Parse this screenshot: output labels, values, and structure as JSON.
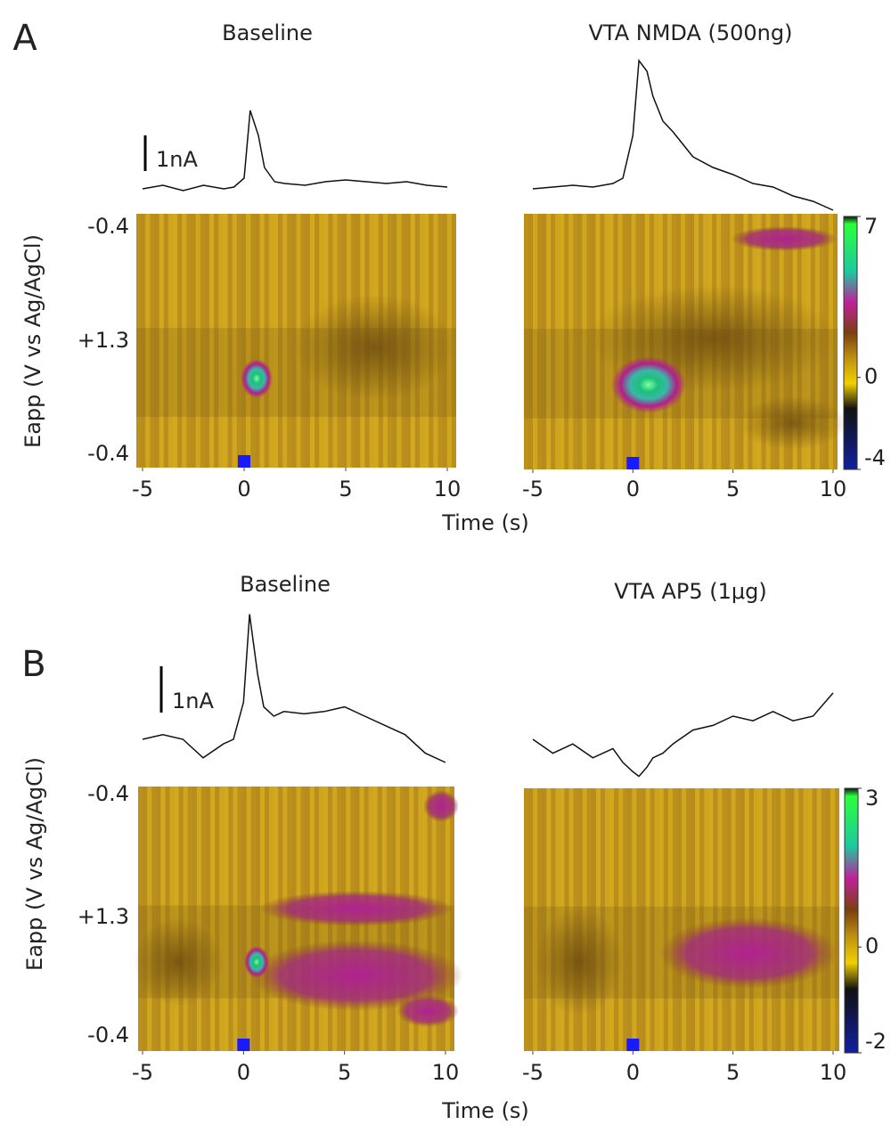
{
  "chart_data": [
    {
      "type": "colorplot",
      "letter": "A",
      "title": "Baseline",
      "ylabel": "Eapp (V vs Ag/AgCl)",
      "xlabel": "Time (s)",
      "eapp_ticks": [
        "-0.4",
        "+1.3",
        "-0.4"
      ],
      "scale_bar": {
        "value": 1,
        "label": "1nA"
      },
      "xlim": [
        -5,
        10
      ],
      "xticks": [
        -5,
        0,
        5,
        10
      ],
      "trace": {
        "x": [
          -5,
          -4,
          -3,
          -2,
          -1,
          -0.5,
          0,
          0.3,
          0.7,
          1,
          1.5,
          2,
          3,
          4,
          5,
          6,
          7,
          8,
          9,
          10
        ],
        "values": [
          0,
          0.1,
          -0.05,
          0.1,
          0,
          0.05,
          0.3,
          2.2,
          1.5,
          0.6,
          0.2,
          0.15,
          0.1,
          0.2,
          0.25,
          0.2,
          0.15,
          0.2,
          0.1,
          0.05
        ]
      }
    },
    {
      "type": "colorplot",
      "title": "VTA NMDA (500ng)",
      "xlim": [
        -5,
        10
      ],
      "xticks": [
        -5,
        0,
        5,
        10
      ],
      "colorbar": {
        "lim": [
          -4,
          7
        ],
        "ticks": [
          7,
          0,
          -4
        ]
      },
      "trace": {
        "x": [
          -5,
          -4,
          -3,
          -2,
          -1,
          -0.5,
          0,
          0.3,
          0.7,
          1,
          1.5,
          2,
          3,
          4,
          5,
          6,
          7,
          8,
          9,
          10
        ],
        "values": [
          0,
          0.05,
          0.1,
          0.05,
          0.15,
          0.3,
          1.5,
          3.6,
          3.3,
          2.6,
          1.9,
          1.6,
          0.9,
          0.6,
          0.4,
          0.15,
          0.05,
          -0.2,
          -0.35,
          -0.6
        ]
      }
    },
    {
      "type": "colorplot",
      "letter": "B",
      "title": "Baseline",
      "ylabel": "Eapp (V vs Ag/AgCl)",
      "xlabel": "Time (s)",
      "eapp_ticks": [
        "-0.4",
        "+1.3",
        "-0.4"
      ],
      "scale_bar": {
        "value": 1,
        "label": "1nA"
      },
      "xlim": [
        -5,
        10
      ],
      "xticks": [
        -5,
        0,
        5,
        10
      ],
      "trace": {
        "x": [
          -5,
          -4,
          -3,
          -2,
          -1,
          -0.5,
          0,
          0.3,
          0.7,
          1,
          1.5,
          2,
          3,
          4,
          5,
          6,
          7,
          8,
          9,
          10
        ],
        "values": [
          0,
          0.1,
          0,
          -0.4,
          -0.1,
          0,
          0.8,
          2.7,
          1.4,
          0.7,
          0.5,
          0.6,
          0.55,
          0.6,
          0.7,
          0.5,
          0.3,
          0.1,
          -0.3,
          -0.5
        ]
      }
    },
    {
      "type": "colorplot",
      "title": "VTA AP5 (1μg)",
      "xlim": [
        -5,
        10
      ],
      "xticks": [
        -5,
        0,
        5,
        10
      ],
      "colorbar": {
        "lim": [
          -2,
          3
        ],
        "ticks": [
          3,
          0,
          -2
        ]
      },
      "trace": {
        "x": [
          -5,
          -4,
          -3,
          -2,
          -1,
          -0.5,
          0,
          0.3,
          0.7,
          1,
          1.5,
          2,
          3,
          4,
          5,
          6,
          7,
          8,
          9,
          10
        ],
        "values": [
          0,
          -0.3,
          -0.1,
          -0.4,
          -0.2,
          -0.5,
          -0.7,
          -0.8,
          -0.6,
          -0.4,
          -0.3,
          -0.1,
          0.2,
          0.3,
          0.5,
          0.4,
          0.6,
          0.4,
          0.5,
          1.0
        ]
      }
    }
  ]
}
